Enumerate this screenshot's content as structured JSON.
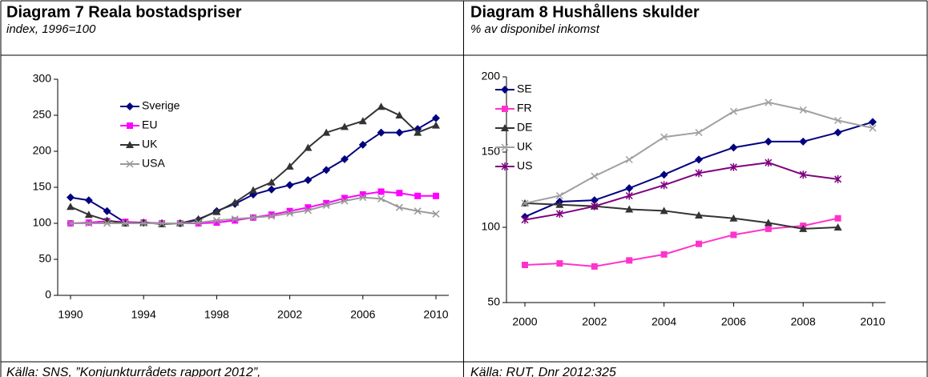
{
  "chart_data": [
    {
      "type": "line",
      "title": "Diagram 7 Reala bostadspriser",
      "subtitle": "index, 1996=100",
      "source": "Källa: SNS, ”Konjunkturrådets rapport 2012”,",
      "x": [
        1990,
        1991,
        1992,
        1993,
        1994,
        1995,
        1996,
        1997,
        1998,
        1999,
        2000,
        2001,
        2002,
        2003,
        2004,
        2005,
        2006,
        2007,
        2008,
        2009,
        2010
      ],
      "xlim": [
        1990,
        2010
      ],
      "xticks": [
        1990,
        1994,
        1998,
        2002,
        2006,
        2010
      ],
      "ylim": [
        0,
        300
      ],
      "yticks": [
        0,
        50,
        100,
        150,
        200,
        250,
        300
      ],
      "series": [
        {
          "name": "Sverige",
          "color": "#000080",
          "marker": "diamond",
          "values": [
            136,
            132,
            117,
            101,
            101,
            100,
            100,
            105,
            117,
            127,
            140,
            147,
            153,
            160,
            174,
            189,
            209,
            226,
            226,
            231,
            246
          ]
        },
        {
          "name": "EU",
          "color": "#ff00ff",
          "marker": "square",
          "values": [
            100,
            101,
            103,
            102,
            101,
            100,
            100,
            100,
            101,
            104,
            108,
            112,
            117,
            122,
            128,
            135,
            140,
            144,
            142,
            138,
            138
          ]
        },
        {
          "name": "UK",
          "color": "#333333",
          "marker": "triangle",
          "values": [
            123,
            112,
            104,
            100,
            101,
            99,
            100,
            106,
            116,
            129,
            146,
            157,
            179,
            205,
            226,
            234,
            242,
            262,
            250,
            226,
            236
          ]
        },
        {
          "name": "USA",
          "color": "#999999",
          "marker": "x",
          "values": [
            100,
            100,
            100,
            100,
            100,
            100,
            100,
            101,
            104,
            106,
            108,
            110,
            114,
            118,
            125,
            131,
            136,
            134,
            122,
            117,
            113
          ]
        }
      ]
    },
    {
      "type": "line",
      "title": "Diagram 8 Hushållens skulder",
      "subtitle": "% av disponibel inkomst",
      "source": "Källa: RUT, Dnr 2012:325",
      "x": [
        2000,
        2001,
        2002,
        2003,
        2004,
        2005,
        2006,
        2007,
        2008,
        2009,
        2010
      ],
      "xlim": [
        2000,
        2010
      ],
      "xticks": [
        2000,
        2002,
        2004,
        2006,
        2008,
        2010
      ],
      "ylim": [
        50,
        200
      ],
      "yticks": [
        50,
        100,
        150,
        200
      ],
      "series": [
        {
          "name": "SE",
          "color": "#000080",
          "marker": "diamond",
          "values": [
            107,
            117,
            118,
            126,
            135,
            145,
            153,
            157,
            157,
            163,
            170
          ]
        },
        {
          "name": "FR",
          "color": "#ff33cc",
          "marker": "square",
          "values": [
            75,
            76,
            74,
            78,
            82,
            89,
            95,
            99,
            101,
            106,
            null
          ]
        },
        {
          "name": "DE",
          "color": "#333333",
          "marker": "triangle",
          "values": [
            116,
            115,
            114,
            112,
            111,
            108,
            106,
            103,
            99,
            100,
            null
          ]
        },
        {
          "name": "UK",
          "color": "#a0a0a0",
          "marker": "x",
          "values": [
            116,
            121,
            134,
            145,
            160,
            163,
            177,
            183,
            178,
            171,
            166
          ]
        },
        {
          "name": "US",
          "color": "#800080",
          "marker": "star",
          "values": [
            105,
            109,
            114,
            121,
            128,
            136,
            140,
            143,
            135,
            132,
            null
          ]
        }
      ]
    }
  ]
}
